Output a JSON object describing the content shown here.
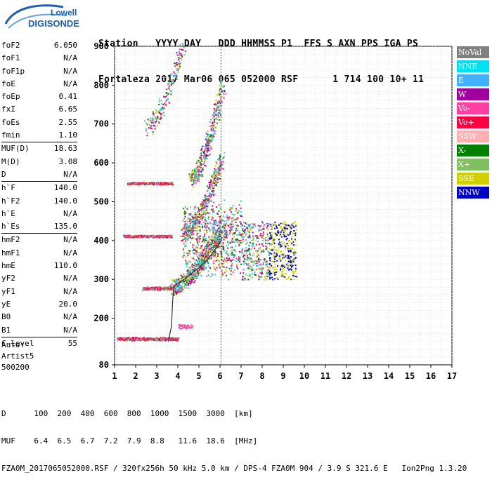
{
  "logo": {
    "line1": "Lowell",
    "line2": "DIGISONDE"
  },
  "header": {
    "line1": "Station   YYYY DAY   DDD HHMMSS P1  FFS S AXN PPS IGA PS",
    "line2": "Fortaleza 2017 Mar06 065 052000 RSF      1 714 100 10+ 11"
  },
  "params": {
    "group1": [
      {
        "label": "foF2",
        "value": "6.050"
      },
      {
        "label": "foF1",
        "value": "N/A"
      },
      {
        "label": "foF1p",
        "value": "N/A"
      },
      {
        "label": "foE",
        "value": "N/A"
      },
      {
        "label": "foEp",
        "value": "0.41"
      },
      {
        "label": "fxI",
        "value": "6.65"
      },
      {
        "label": "foEs",
        "value": "2.55"
      },
      {
        "label": "fmin",
        "value": "1.10"
      }
    ],
    "group2": [
      {
        "label": "MUF(D)",
        "value": "18.63"
      },
      {
        "label": "M(D)",
        "value": "3.08"
      },
      {
        "label": "D",
        "value": "N/A"
      }
    ],
    "group3": [
      {
        "label": "h`F",
        "value": "140.0"
      },
      {
        "label": "h`F2",
        "value": "140.0"
      },
      {
        "label": "h`E",
        "value": "N/A"
      },
      {
        "label": "h`Es",
        "value": "135.0"
      }
    ],
    "group4": [
      {
        "label": "hmF2",
        "value": "N/A"
      },
      {
        "label": "hmF1",
        "value": "N/A"
      },
      {
        "label": "hmE",
        "value": "110.0"
      },
      {
        "label": "yF2",
        "value": "N/A"
      },
      {
        "label": "yF1",
        "value": "N/A"
      },
      {
        "label": "yE",
        "value": "20.0"
      },
      {
        "label": "B0",
        "value": "N/A"
      },
      {
        "label": "B1",
        "value": "N/A"
      }
    ],
    "group5": [
      {
        "label": "C-level",
        "value": "55"
      }
    ]
  },
  "auto": {
    "line1": "Auto:",
    "line2": "Artist5",
    "line3": "500200"
  },
  "legend": [
    {
      "label": "NoVal",
      "color": "#808080"
    },
    {
      "label": "NNE",
      "color": "#00e0f0"
    },
    {
      "label": "E",
      "color": "#40b0ff"
    },
    {
      "label": "W",
      "color": "#a000a0"
    },
    {
      "label": "Vo-",
      "color": "#ff40a0"
    },
    {
      "label": "Vo+",
      "color": "#ff0040"
    },
    {
      "label": "SSW",
      "color": "#ffb0b0"
    },
    {
      "label": "X-",
      "color": "#008000"
    },
    {
      "label": "X+",
      "color": "#80c060"
    },
    {
      "label": "SSE",
      "color": "#d0d000"
    },
    {
      "label": "NNW",
      "color": "#0000c0"
    }
  ],
  "chart_data": {
    "type": "scatter",
    "xlim": [
      1,
      17
    ],
    "ylim": [
      80,
      900
    ],
    "x_ticks": [
      1,
      2,
      3,
      4,
      5,
      6,
      7,
      8,
      9,
      10,
      11,
      12,
      13,
      14,
      15,
      16,
      17
    ],
    "y_ticks": [
      80,
      200,
      300,
      400,
      500,
      600,
      700,
      800,
      900
    ],
    "grid": true,
    "profile": {
      "x": [
        3.55,
        3.7,
        3.75,
        3.8,
        4.0,
        4.3,
        4.7,
        5.0,
        5.3,
        5.6,
        5.8,
        6.0,
        6.05
      ],
      "y": [
        140,
        180,
        240,
        280,
        290,
        300,
        318,
        330,
        345,
        365,
        380,
        395,
        400
      ]
    },
    "traces": [
      {
        "name": "Es",
        "x0": 1.1,
        "x1": 4.0,
        "h": 148,
        "spread": 4,
        "color": "Vo+"
      },
      {
        "name": "F-low",
        "x0": 2.3,
        "x1": 3.7,
        "h": 278,
        "spread": 4,
        "color": "Vo+"
      },
      {
        "name": "2F",
        "x0": 1.4,
        "x1": 3.7,
        "h": 412,
        "spread": 3,
        "color": "Vo+"
      },
      {
        "name": "3F",
        "x0": 1.6,
        "x1": 3.7,
        "h": 548,
        "spread": 3,
        "color": "Vo+"
      }
    ],
    "foF2_marker": 6.05,
    "bottom_table": {
      "D": [
        "100",
        "200",
        "400",
        "600",
        "800",
        "1000",
        "1500",
        "3000",
        "[km]"
      ],
      "MUF": [
        "6.4",
        "6.5",
        "6.7",
        "7.2",
        "7.9",
        "8.8",
        "11.6",
        "18.6",
        "[MHz]"
      ]
    }
  },
  "footer": {
    "line1": "D      100  200  400  600  800  1000  1500  3000  [km]",
    "line2": "MUF    6.4  6.5  6.7  7.2  7.9  8.8   11.6  18.6  [MHz]",
    "line3": "FZA0M_2017065052000.RSF / 320fx256h 50 kHz 5.0 km / DPS-4 FZA0M 904 / 3.9 S 321.6 E   Ion2Png 1.3.20"
  }
}
